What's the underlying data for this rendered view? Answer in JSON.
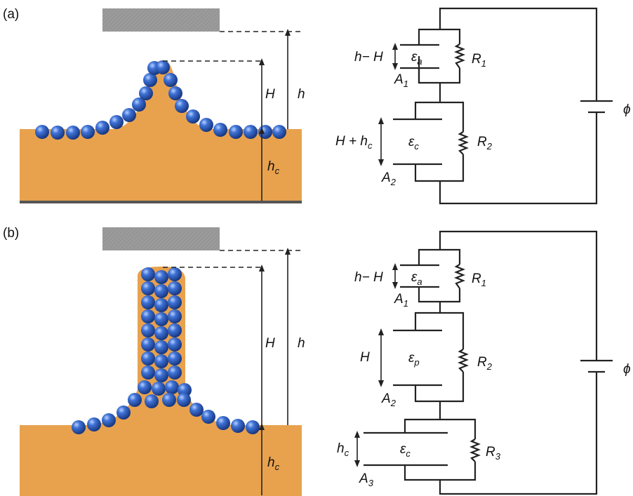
{
  "panels": [
    {
      "id": "a",
      "label": "(a)",
      "sample": {
        "dim_h_a": "h",
        "dim_H": "H",
        "dim_hc": "h",
        "dim_hc_sub": "c"
      },
      "circuit": {
        "eps_a": "ε",
        "eps_a_sub": "a",
        "eps_c": "ε",
        "eps_c_sub": "c",
        "R1": "R",
        "R1_sub": "1",
        "R2": "R",
        "R2_sub": "2",
        "A1": "A",
        "A1_sub": "1",
        "A2": "A",
        "A2_sub": "2",
        "gap1": "h− H",
        "gap2_main": "H + h",
        "gap2_sub": "c",
        "source": "ϕ"
      }
    },
    {
      "id": "b",
      "label": "(b)",
      "sample": {
        "dim_h_a": "h",
        "dim_H": "H",
        "dim_hc": "h",
        "dim_hc_sub": "c"
      },
      "circuit": {
        "eps_a": "ε",
        "eps_a_sub": "a",
        "eps_p": "ε",
        "eps_p_sub": "p",
        "eps_c": "ε",
        "eps_c_sub": "c",
        "R1": "R",
        "R1_sub": "1",
        "R2": "R",
        "R2_sub": "2",
        "R3": "R",
        "R3_sub": "3",
        "A1": "A",
        "A1_sub": "1",
        "A2": "A",
        "A2_sub": "2",
        "A3": "A",
        "A3_sub": "3",
        "gap1": "h− H",
        "gap2": "H",
        "gap3_main": "h",
        "gap3_sub": "c",
        "source": "ϕ"
      }
    }
  ],
  "colors": {
    "liquid": "#e8a24e",
    "electrode": "#9b9b9b",
    "substrate": "#555555",
    "particle": "#2a57b8",
    "particle_highlight": "#9cc0ff",
    "wire": "#222222"
  }
}
